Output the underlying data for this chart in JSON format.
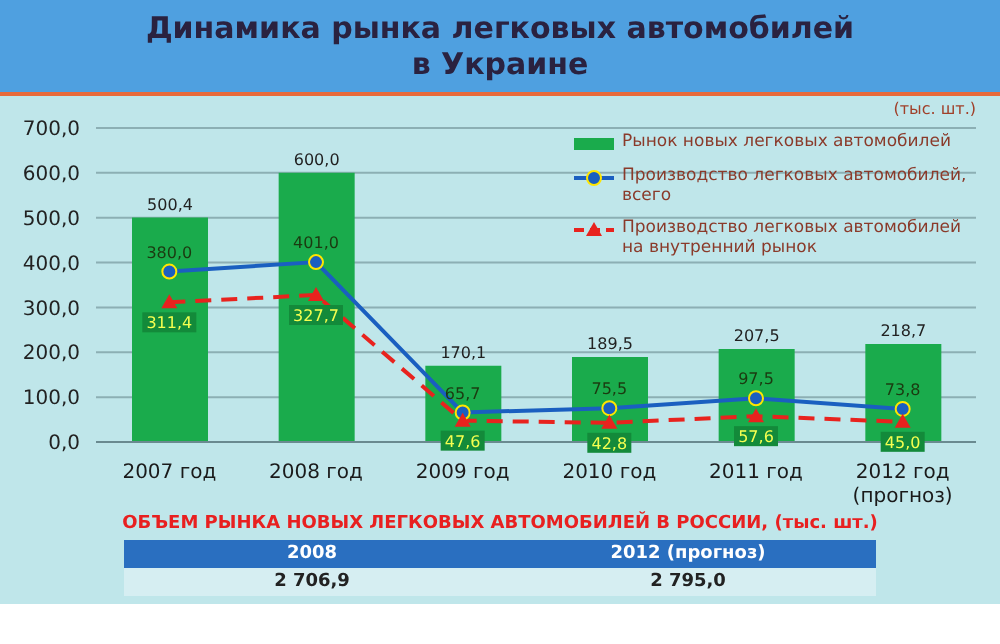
{
  "chart_data": {
    "type": "bar",
    "title": "Динамика рынка легковых автомобилей\nв Украине",
    "categories": [
      "2007 год",
      "2008 год",
      "2009 год",
      "2010 год",
      "2011 год",
      "2012 год\n(прогноз)"
    ],
    "series": [
      {
        "name": "Рынок новых легковых автомобилей",
        "color": "#1aab4c",
        "values": [
          500.4,
          600.0,
          170.1,
          189.5,
          207.5,
          218.7
        ],
        "value_labels": [
          "500,4",
          "600,0",
          "170,1",
          "189,5",
          "207,5",
          "218,7"
        ]
      },
      {
        "name": "Производство легковых автомобилей, всего",
        "type": "line",
        "color": "#1a5fc0",
        "marker": "circle",
        "line_style": "solid",
        "values": [
          380.0,
          401.0,
          65.7,
          75.5,
          97.5,
          73.8
        ],
        "value_labels": [
          "380,0",
          "401,0",
          "65,7",
          "75,5",
          "97,5",
          "73,8"
        ]
      },
      {
        "name": "Производство легковых автомобилей на внутренний рынок",
        "type": "line",
        "color": "#e8231e",
        "marker": "triangle",
        "line_style": "dashed",
        "values": [
          311.4,
          327.7,
          47.6,
          42.8,
          57.6,
          45.0
        ],
        "value_labels": [
          "311,4",
          "327,7",
          "47,6",
          "42,8",
          "57,6",
          "45,0"
        ]
      }
    ],
    "ylim": [
      0,
      700
    ],
    "yticks": [
      {
        "value": 0,
        "label": "0,0"
      },
      {
        "value": 100,
        "label": "100,0"
      },
      {
        "value": 200,
        "label": "200,0"
      },
      {
        "value": 300,
        "label": "300,0"
      },
      {
        "value": 400,
        "label": "400,0"
      },
      {
        "value": 500,
        "label": "500,0"
      },
      {
        "value": 600,
        "label": "600,0"
      },
      {
        "value": 700,
        "label": "700,0"
      }
    ],
    "grid": "y",
    "legend": "top right",
    "annotations": [
      "(тыс. шт.)",
      "ОБЪЕМ РЫНКА НОВЫХ ЛЕГКОВЫХ АВТОМОБИЛЕЙ В РОССИИ, (тыс. шт.)",
      "2008",
      "2012 (прогноз)",
      "2 706,9",
      "2 795,0"
    ]
  }
}
